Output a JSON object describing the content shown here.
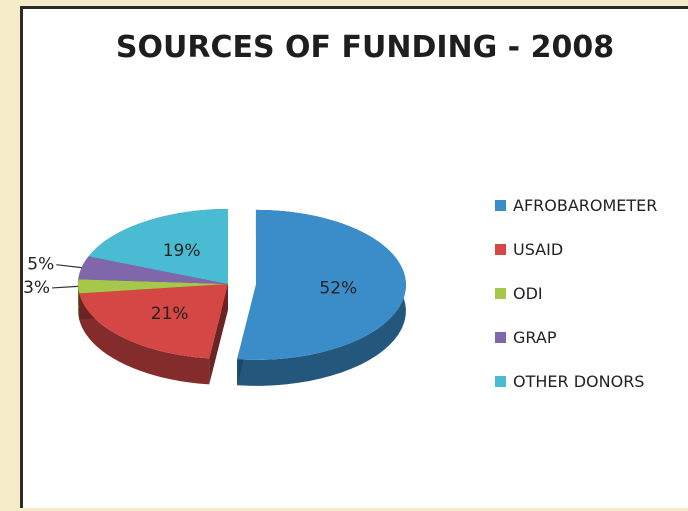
{
  "chart_data": {
    "type": "pie",
    "title": "SOURCES OF FUNDING - 2008",
    "slices": [
      {
        "label": "AFROBAROMETER",
        "value": 52,
        "value_label": "52%",
        "color": "#3a8dc8"
      },
      {
        "label": "USAID",
        "value": 21,
        "value_label": "21%",
        "color": "#d44745"
      },
      {
        "label": "ODI",
        "value": 3,
        "value_label": "3%",
        "color": "#a5c84a"
      },
      {
        "label": "GRAP",
        "value": 5,
        "value_label": "5%",
        "color": "#8067ab"
      },
      {
        "label": "OTHER DONORS",
        "value": 19,
        "value_label": "19%",
        "color": "#49bcd3"
      }
    ],
    "legend_position": "right",
    "style": "3d-exploded"
  }
}
